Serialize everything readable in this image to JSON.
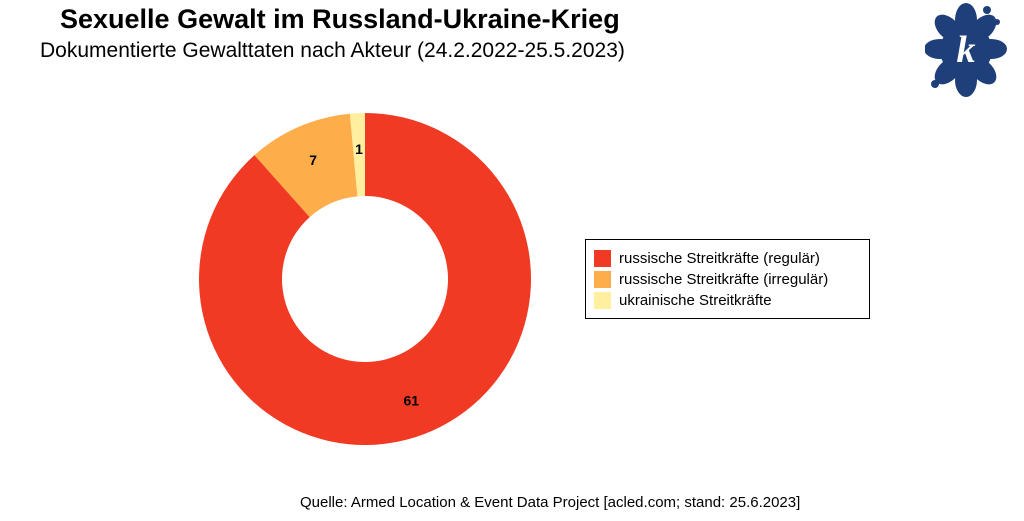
{
  "title": "Sexuelle Gewalt im Russland-Ukraine-Krieg",
  "subtitle": "Dokumentierte Gewalttaten nach Akteur (24.2.2022-25.5.2023)",
  "source": "Quelle: Armed Location & Event Data Project [acled.com; stand: 25.6.2023]",
  "logo": {
    "letter": "k",
    "color": "#1f3f7a",
    "icon": "flower-logo-icon"
  },
  "chart_data": {
    "type": "pie",
    "donut": true,
    "title": "Sexuelle Gewalt im Russland-Ukraine-Krieg",
    "subtitle": "Dokumentierte Gewalttaten nach Akteur (24.2.2022-25.5.2023)",
    "categories": [
      "russische Streitkräfte (regulär)",
      "russische Streitkräfte (irregulär)",
      "ukrainische Streitkräfte"
    ],
    "values": [
      61,
      7,
      1
    ],
    "data_labels": [
      "61",
      "7",
      "1"
    ],
    "colors": [
      "#f03a23",
      "#fdae4b",
      "#ffef9f"
    ],
    "start_angle": "12 o'clock",
    "direction": "clockwise",
    "legend": {
      "placement": "right",
      "items": [
        {
          "label": "russische Streitkräfte (regulär)",
          "color": "#f03a23"
        },
        {
          "label": "russische Streitkräfte (irregulär)",
          "color": "#fdae4b"
        },
        {
          "label": "ukrainische Streitkräfte",
          "color": "#ffef9f"
        }
      ]
    }
  }
}
